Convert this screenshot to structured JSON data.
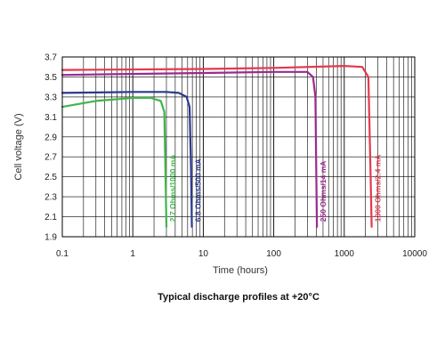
{
  "chart_data": {
    "type": "line",
    "title": "Typical discharge profiles at +20°C",
    "xlabel": "Time (hours)",
    "ylabel": "Cell voltage (V)",
    "xscale": "log",
    "xlim": [
      0.1,
      10000
    ],
    "ylim": [
      1.9,
      3.7
    ],
    "xticks": [
      0.1,
      1,
      10,
      100,
      1000,
      10000
    ],
    "xtick_labels": [
      "0.1",
      "1",
      "10",
      "100",
      "1000",
      "10000"
    ],
    "yticks": [
      1.9,
      2.1,
      2.3,
      2.5,
      2.7,
      2.9,
      3.1,
      3.3,
      3.5,
      3.7
    ],
    "ytick_labels": [
      "1.9",
      "2.1",
      "2.3",
      "2.5",
      "2.7",
      "2.9",
      "3.1",
      "3.3",
      "3.5",
      "3.7"
    ],
    "grid": true,
    "series": [
      {
        "name": "2.7 Ohms/1000 mA",
        "color": "#3fb54a",
        "x": [
          0.1,
          0.3,
          1.0,
          1.8,
          2.5,
          2.8,
          2.9,
          3.0
        ],
        "y": [
          3.2,
          3.26,
          3.29,
          3.29,
          3.26,
          3.15,
          2.6,
          2.0
        ]
      },
      {
        "name": "6.8 Ohms/500 mA",
        "color": "#2a3a8c",
        "x": [
          0.1,
          1.0,
          3.0,
          4.5,
          5.8,
          6.4,
          6.7,
          6.9
        ],
        "y": [
          3.34,
          3.35,
          3.35,
          3.34,
          3.3,
          3.2,
          2.6,
          2.0
        ]
      },
      {
        "name": "250 Ohms/14 mA",
        "color": "#9b2a8e",
        "x": [
          0.1,
          10,
          100,
          300,
          360,
          390,
          400,
          410
        ],
        "y": [
          3.52,
          3.54,
          3.55,
          3.55,
          3.5,
          3.3,
          2.6,
          2.0
        ]
      },
      {
        "name": "1300 Ohms/2.4 mA",
        "color": "#e23a4d",
        "x": [
          0.1,
          10,
          100,
          1000,
          1800,
          2200,
          2350,
          2450
        ],
        "y": [
          3.57,
          3.58,
          3.59,
          3.61,
          3.6,
          3.5,
          2.6,
          2.0
        ]
      }
    ]
  }
}
